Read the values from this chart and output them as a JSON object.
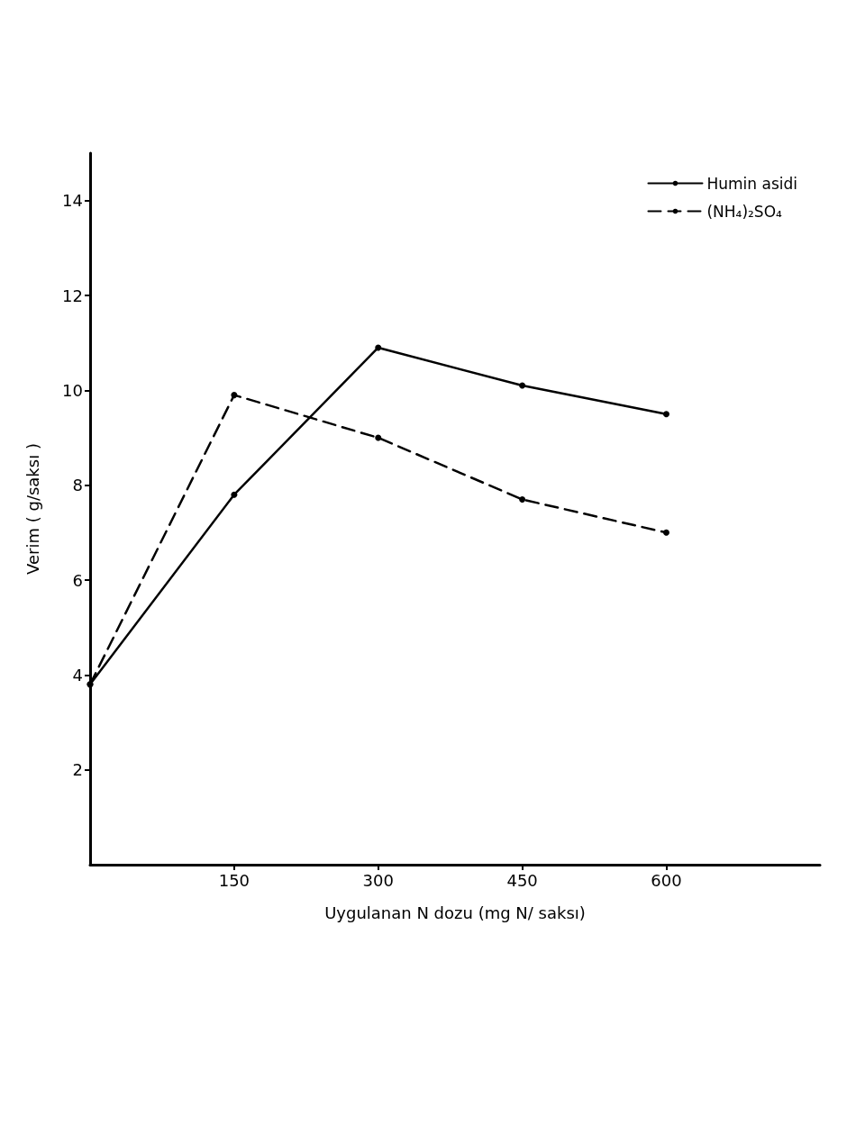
{
  "chart_data": {
    "type": "line",
    "xlabel": "Uygulanan N dozu (mg N/ saksı)",
    "ylabel": "Verim ( g/saksı )",
    "x": [
      0,
      150,
      300,
      450,
      600
    ],
    "series": [
      {
        "name": "Humin asidi",
        "color": "#000000",
        "line_style": "solid",
        "values": [
          3.8,
          7.8,
          10.9,
          10.1,
          9.5
        ]
      },
      {
        "name": "(NH₄)₂SO₄",
        "color": "#000000",
        "line_style": "dashed",
        "values": [
          3.8,
          9.9,
          9.0,
          7.7,
          7.0
        ]
      }
    ],
    "xlim": [
      0,
      760
    ],
    "xticks": [
      150,
      300,
      450,
      600
    ],
    "ylim": [
      0,
      15
    ],
    "yticks": [
      2,
      4,
      6,
      8,
      10,
      12,
      14
    ],
    "grid": false,
    "legend": "top right",
    "marker": "circle"
  }
}
